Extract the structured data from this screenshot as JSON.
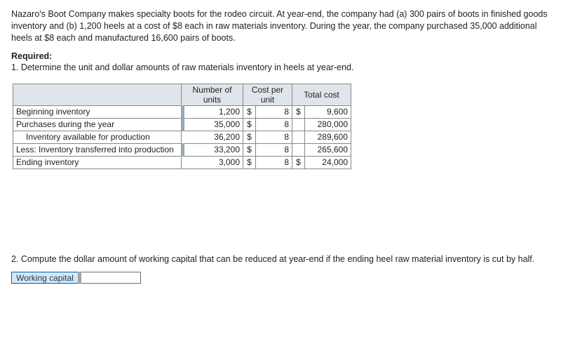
{
  "description": "Nazaro's Boot Company makes specialty boots for the rodeo circuit. At year-end, the company had (a) 300 pairs of boots in finished goods inventory and (b) 1,200 heels at a cost of $8 each in raw materials inventory. During the year, the company purchased 35,000 additional heels at $8 each and manufactured 16,600 pairs of boots.",
  "required_heading": "Required:",
  "requirement1": "1. Determine the unit and dollar amounts of raw materials inventory in heels at year-end.",
  "table": {
    "headers": {
      "blank": "",
      "units": "Number of units",
      "cost_per_unit": "Cost per unit",
      "total_cost": "Total cost"
    },
    "rows": [
      {
        "label": "Beginning inventory",
        "indent": false,
        "units": "1,200",
        "units_is_input": true,
        "currency1": "$",
        "cost": "8",
        "cost_is_input": false,
        "currency2": "$",
        "total": "9,600"
      },
      {
        "label": "Purchases during the year",
        "indent": false,
        "units": "35,000",
        "units_is_input": true,
        "currency1": "$",
        "cost": "8",
        "cost_is_input": false,
        "currency2": "",
        "total": "280,000"
      },
      {
        "label": "Inventory available for production",
        "indent": true,
        "units": "36,200",
        "units_is_input": false,
        "currency1": "$",
        "cost": "8",
        "cost_is_input": false,
        "currency2": "",
        "total": "289,600"
      },
      {
        "label": "Less: Inventory transferred into production",
        "indent": false,
        "units": "33,200",
        "units_is_input": true,
        "currency1": "$",
        "cost": "8",
        "cost_is_input": false,
        "currency2": "",
        "total": "265,600"
      },
      {
        "label": "Ending inventory",
        "indent": false,
        "units": "3,000",
        "units_is_input": false,
        "currency1": "$",
        "cost": "8",
        "cost_is_input": false,
        "currency2": "$",
        "total": "24,000"
      }
    ]
  },
  "requirement2": "2. Compute the dollar amount of working capital that can be reduced at year-end if the ending heel raw material inventory is cut by half.",
  "working_capital": {
    "label": "Working capital",
    "value": ""
  },
  "style": {
    "header_bg": "#dfe5ea",
    "border_color": "#888888",
    "input_tab": "#9aa7b0",
    "wc_bg": "#d6e6f2",
    "wc_border": "#0a5fa3"
  }
}
